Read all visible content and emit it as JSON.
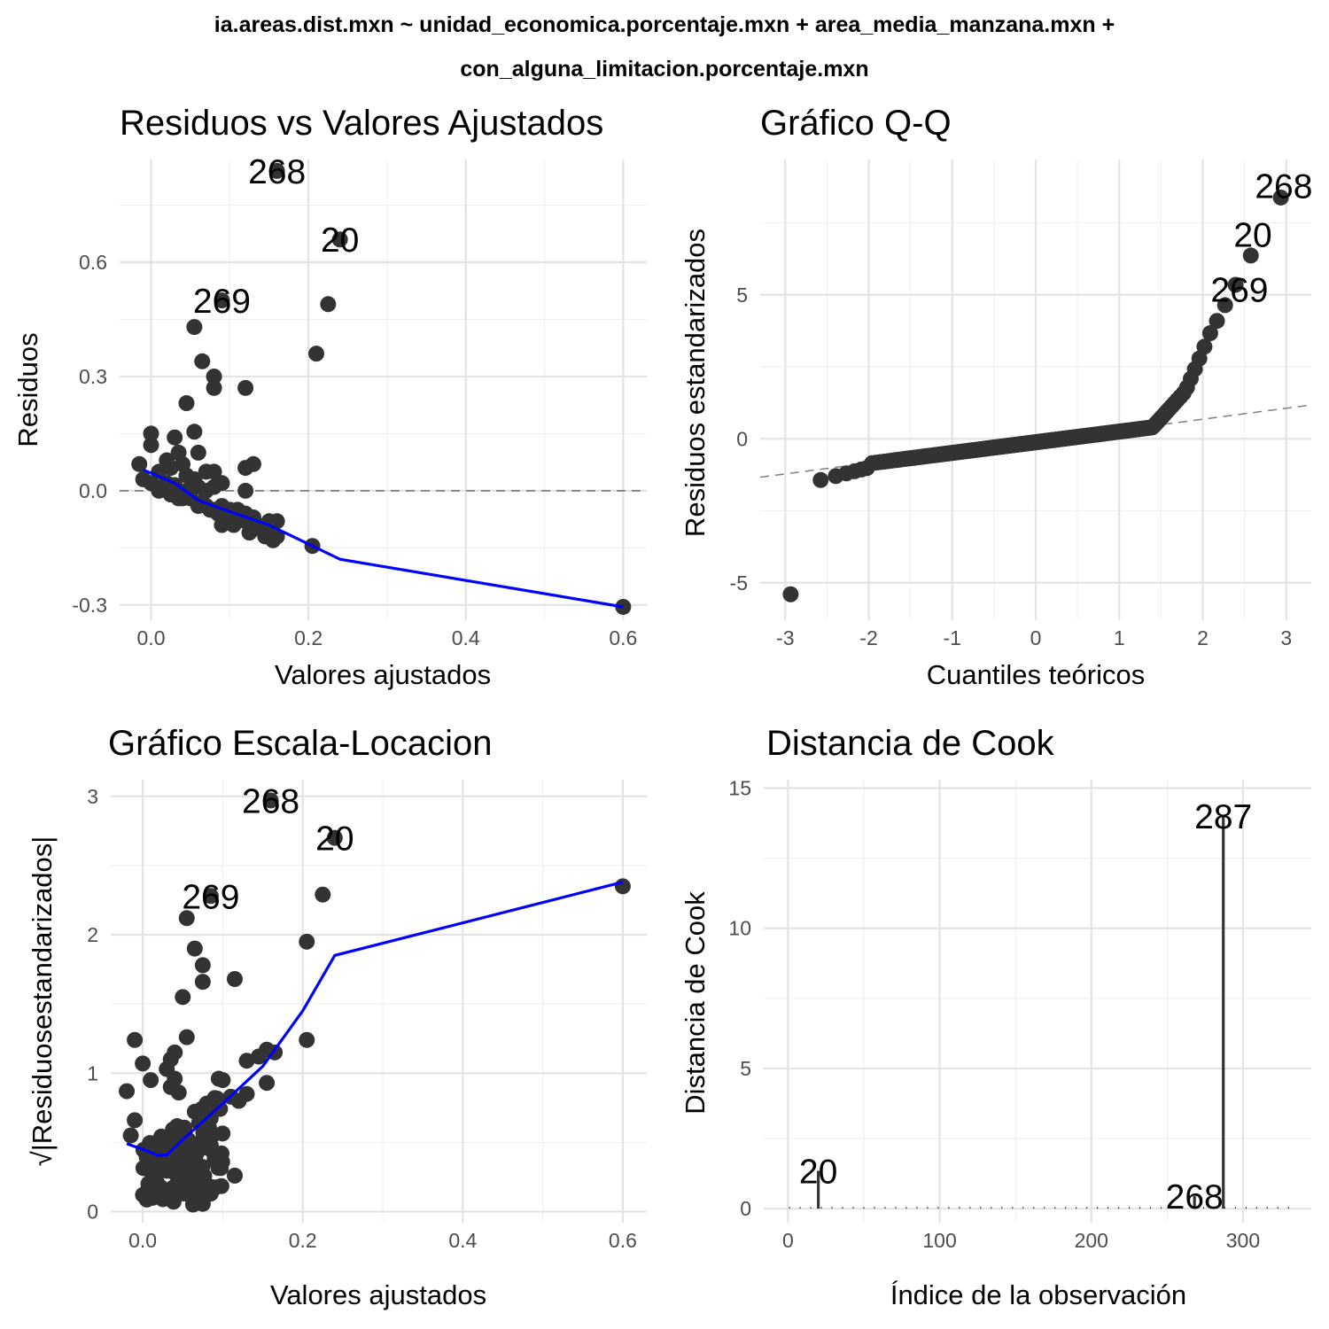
{
  "figure": {
    "title_line1": "ia.areas.dist.mxn ~ unidad_economica.porcentaje.mxn + area_media_manzana.mxn +",
    "title_line2": "con_alguna_limitacion.porcentaje.mxn"
  },
  "colors": {
    "points": "#333333",
    "smooth": "#0000ff",
    "reference": "#808080",
    "segments": "#333333"
  },
  "chart_data": [
    {
      "id": "residuals-vs-fitted",
      "type": "scatter",
      "title": "Residuos vs Valores Ajustados",
      "xlabel": "Valores ajustados",
      "ylabel": "Residuos",
      "xlim": [
        -0.04,
        0.63
      ],
      "ylim": [
        -0.34,
        0.87
      ],
      "x_ticks": [
        0.0,
        0.2,
        0.4,
        0.6
      ],
      "x_tick_labels": [
        "0.0",
        "0.2",
        "0.4",
        "0.6"
      ],
      "y_ticks": [
        -0.3,
        0.0,
        0.3,
        0.6
      ],
      "y_tick_labels": [
        "-0.3",
        "0.0",
        "0.3",
        "0.6"
      ],
      "reference_y": 0,
      "points": [
        [
          0.16,
          0.84
        ],
        [
          0.24,
          0.66
        ],
        [
          0.09,
          0.5
        ],
        [
          0.225,
          0.49
        ],
        [
          0.055,
          0.43
        ],
        [
          0.21,
          0.36
        ],
        [
          0.065,
          0.34
        ],
        [
          0.08,
          0.3
        ],
        [
          0.08,
          0.27
        ],
        [
          0.12,
          0.27
        ],
        [
          0.045,
          0.23
        ],
        [
          0.055,
          0.155
        ],
        [
          0.0,
          0.15
        ],
        [
          0.03,
          0.14
        ],
        [
          0.0,
          0.12
        ],
        [
          0.06,
          0.1
        ],
        [
          0.02,
          0.08
        ],
        [
          0.035,
          0.1
        ],
        [
          -0.015,
          0.07
        ],
        [
          0.04,
          0.07
        ],
        [
          0.13,
          0.07
        ],
        [
          0.12,
          0.06
        ],
        [
          0.07,
          0.05
        ],
        [
          0.08,
          0.05
        ],
        [
          0.01,
          0.05
        ],
        [
          0.025,
          0.06
        ],
        [
          0.045,
          0.04
        ],
        [
          0.055,
          0.03
        ],
        [
          -0.01,
          0.03
        ],
        [
          0.0,
          0.02
        ],
        [
          0.02,
          0.02
        ],
        [
          0.03,
          0.015
        ],
        [
          0.045,
          0.0
        ],
        [
          0.06,
          0.01
        ],
        [
          0.07,
          0.0
        ],
        [
          0.08,
          0.01
        ],
        [
          0.09,
          0.02
        ],
        [
          0.12,
          0.0
        ],
        [
          0.01,
          0.0
        ],
        [
          0.03,
          -0.01
        ],
        [
          0.04,
          -0.02
        ],
        [
          0.05,
          -0.02
        ],
        [
          0.065,
          -0.03
        ],
        [
          0.07,
          -0.04
        ],
        [
          0.08,
          -0.05
        ],
        [
          0.09,
          -0.04
        ],
        [
          0.1,
          -0.05
        ],
        [
          0.11,
          -0.05
        ],
        [
          0.12,
          -0.06
        ],
        [
          0.13,
          -0.07
        ],
        [
          0.085,
          -0.06
        ],
        [
          0.095,
          -0.07
        ],
        [
          0.075,
          -0.05
        ],
        [
          0.06,
          -0.04
        ],
        [
          0.1,
          -0.07
        ],
        [
          0.105,
          -0.09
        ],
        [
          0.12,
          -0.08
        ],
        [
          0.135,
          -0.09
        ],
        [
          0.14,
          -0.1
        ],
        [
          0.15,
          -0.11
        ],
        [
          0.155,
          -0.13
        ],
        [
          0.16,
          -0.12
        ],
        [
          0.16,
          -0.08
        ],
        [
          0.13,
          -0.1
        ],
        [
          0.125,
          -0.11
        ],
        [
          0.15,
          -0.08
        ],
        [
          0.11,
          -0.07
        ],
        [
          0.09,
          -0.09
        ],
        [
          0.145,
          -0.12
        ],
        [
          0.035,
          -0.02
        ],
        [
          0.025,
          -0.01
        ],
        [
          0.015,
          0.01
        ],
        [
          0.05,
          0.0
        ],
        [
          0.205,
          -0.145
        ],
        [
          0.6,
          -0.305
        ]
      ],
      "labels": [
        {
          "text": "268",
          "x": 0.16,
          "y": 0.84
        },
        {
          "text": "20",
          "x": 0.24,
          "y": 0.66
        },
        {
          "text": "269",
          "x": 0.09,
          "y": 0.5
        }
      ],
      "smooth": [
        [
          -0.01,
          0.055
        ],
        [
          0.03,
          0.02
        ],
        [
          0.06,
          -0.025
        ],
        [
          0.1,
          -0.055
        ],
        [
          0.15,
          -0.09
        ],
        [
          0.205,
          -0.145
        ],
        [
          0.24,
          -0.18
        ],
        [
          0.6,
          -0.305
        ]
      ]
    },
    {
      "id": "qq-plot",
      "type": "scatter",
      "title": "Gráfico Q-Q",
      "xlabel": "Cuantiles teóricos",
      "ylabel": "Residuos estandarizados",
      "xlim": [
        -3.3,
        3.3
      ],
      "ylim": [
        -6.3,
        9.7
      ],
      "x_ticks": [
        -3,
        -2,
        -1,
        0,
        1,
        2,
        3
      ],
      "x_tick_labels": [
        "-3",
        "-2",
        "-1",
        "0",
        "1",
        "2",
        "3"
      ],
      "y_ticks": [
        -5,
        0,
        5
      ],
      "y_tick_labels": [
        "-5",
        "0",
        "5"
      ],
      "reference_line": {
        "intercept": -0.08,
        "slope": 0.38
      },
      "labels": [
        {
          "text": "268",
          "x": 2.97,
          "y": 8.8
        },
        {
          "text": "20",
          "x": 2.6,
          "y": 7.1
        },
        {
          "text": "269",
          "x": 2.44,
          "y": 5.2
        }
      ]
    },
    {
      "id": "scale-location",
      "type": "scatter",
      "title": "Gráfico Escala-Locacion",
      "xlabel": "Valores ajustados",
      "ylabel": "√|Residuosestandarizados|",
      "xlim": [
        -0.04,
        0.63
      ],
      "ylim": [
        -0.08,
        3.12
      ],
      "x_ticks": [
        0.0,
        0.2,
        0.4,
        0.6
      ],
      "x_tick_labels": [
        "0.0",
        "0.2",
        "0.4",
        "0.6"
      ],
      "y_ticks": [
        0,
        1,
        2,
        3
      ],
      "y_tick_labels": [
        "0",
        "1",
        "2",
        "3"
      ],
      "points": [
        [
          0.16,
          2.97
        ],
        [
          0.24,
          2.7
        ],
        [
          0.085,
          2.28
        ],
        [
          0.225,
          2.29
        ],
        [
          0.055,
          2.12
        ],
        [
          0.065,
          1.9
        ],
        [
          0.205,
          1.95
        ],
        [
          0.075,
          1.78
        ],
        [
          0.075,
          1.66
        ],
        [
          0.115,
          1.68
        ],
        [
          0.05,
          1.55
        ],
        [
          0.205,
          1.24
        ],
        [
          -0.01,
          1.24
        ],
        [
          0.055,
          1.26
        ],
        [
          0.0,
          1.07
        ],
        [
          0.04,
          1.15
        ],
        [
          0.035,
          1.1
        ],
        [
          0.155,
          1.17
        ],
        [
          0.165,
          1.15
        ],
        [
          0.145,
          1.12
        ],
        [
          0.13,
          1.09
        ],
        [
          0.155,
          0.93
        ],
        [
          0.115,
          0.26
        ],
        [
          0.085,
          0.13
        ],
        [
          0.6,
          2.35
        ],
        [
          -0.02,
          0.87
        ],
        [
          -0.015,
          0.55
        ],
        [
          -0.01,
          0.66
        ],
        [
          0.01,
          0.95
        ],
        [
          0.03,
          1.03
        ],
        [
          0.035,
          0.9
        ],
        [
          0.04,
          0.96
        ],
        [
          0.045,
          0.86
        ],
        [
          0.095,
          0.96
        ],
        [
          0.1,
          0.95
        ],
        [
          0.11,
          0.83
        ],
        [
          0.12,
          0.8
        ],
        [
          0.13,
          0.85
        ],
        [
          0.09,
          0.82
        ],
        [
          0.08,
          0.78
        ]
      ],
      "cloud": {
        "x_range": [
          0.0,
          0.1
        ],
        "y_range": [
          0.05,
          0.85
        ],
        "count": 150,
        "seed": 11
      },
      "labels": [
        {
          "text": "268",
          "x": 0.16,
          "y": 2.97
        },
        {
          "text": "20",
          "x": 0.24,
          "y": 2.7
        },
        {
          "text": "269",
          "x": 0.085,
          "y": 2.28
        }
      ],
      "smooth": [
        [
          -0.02,
          0.49
        ],
        [
          0.0,
          0.45
        ],
        [
          0.02,
          0.405
        ],
        [
          0.03,
          0.41
        ],
        [
          0.05,
          0.52
        ],
        [
          0.1,
          0.78
        ],
        [
          0.15,
          1.05
        ],
        [
          0.2,
          1.45
        ],
        [
          0.24,
          1.85
        ],
        [
          0.6,
          2.38
        ]
      ]
    },
    {
      "id": "cooks-distance",
      "type": "bar",
      "title": "Distancia de Cook",
      "xlabel": "Índice de la observación",
      "ylabel": "Distancia de Cook",
      "xlim": [
        -16,
        345
      ],
      "ylim": [
        -0.5,
        15.3
      ],
      "x_ticks": [
        0,
        100,
        200,
        300
      ],
      "x_tick_labels": [
        "0",
        "100",
        "200",
        "300"
      ],
      "y_ticks": [
        0,
        5,
        10,
        15
      ],
      "y_tick_labels": [
        "0",
        "5",
        "10",
        "15"
      ],
      "bars": [
        {
          "index": 20,
          "value": 1.35
        },
        {
          "index": 268,
          "value": 0.45
        },
        {
          "index": 287,
          "value": 14.0
        }
      ],
      "labels": [
        {
          "text": "20",
          "x": 20,
          "y": 1.35
        },
        {
          "text": "268",
          "x": 268,
          "y": 0.45
        },
        {
          "text": "287",
          "x": 287,
          "y": 14.0
        }
      ]
    }
  ]
}
